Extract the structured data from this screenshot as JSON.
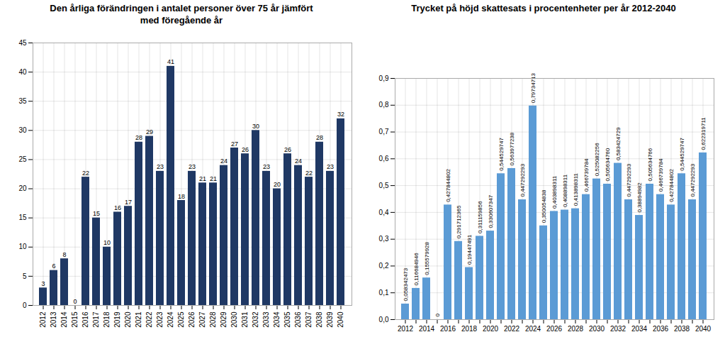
{
  "chart_data": [
    {
      "type": "bar",
      "title": "Den årliga förändringen i antalet personer över 75 år jämfört\nmed föregående år",
      "categories": [
        "2012",
        "2013",
        "2014",
        "2015",
        "2016",
        "2017",
        "2018",
        "2019",
        "2020",
        "2021",
        "2022",
        "2023",
        "2024",
        "2025",
        "2026",
        "2027",
        "2028",
        "2029",
        "2030",
        "2031",
        "2032",
        "2033",
        "2034",
        "2035",
        "2036",
        "2037",
        "2038",
        "2039",
        "2040"
      ],
      "values": [
        3,
        6,
        8,
        0,
        22,
        15,
        10,
        16,
        17,
        28,
        29,
        23,
        41,
        18,
        23,
        21,
        21,
        24,
        27,
        26,
        30,
        23,
        20,
        26,
        24,
        22,
        28,
        23,
        32
      ],
      "color": "#1F3864",
      "ylim": [
        0,
        45
      ],
      "yticks": [
        0,
        5,
        10,
        15,
        20,
        25,
        30,
        35,
        40,
        45
      ],
      "grid": true,
      "data_labels": true
    },
    {
      "type": "bar",
      "title": "Trycket på höjd skattesats i procentenheter per år 2012-2040",
      "categories": [
        "2012",
        null,
        "2014",
        null,
        "2016",
        null,
        "2018",
        null,
        "2020",
        null,
        "2022",
        null,
        "2024",
        null,
        "2026",
        null,
        "2028",
        null,
        "2030",
        null,
        "2032",
        null,
        "2034",
        null,
        "2036",
        null,
        "2038",
        null,
        "2040"
      ],
      "values": [
        0.058342473,
        0.116684946,
        0.155579928,
        0.0,
        0.427844802,
        0.291712365,
        0.19447491,
        0.311159856,
        0.330607347,
        0.544529747,
        0.563977238,
        0.447292293,
        0.79734713,
        0.350054838,
        0.403898311,
        0.408898311,
        0.413898311,
        0.466739784,
        0.525082256,
        0.50563476,
        0.583424729,
        0.447292293,
        0.38894982,
        0.505634766,
        0.466739784,
        0.427844802,
        0.544529747,
        0.447292293,
        0.622319711
      ],
      "value_labels": [
        "0,058342473",
        "0,116684946",
        "0,155579928",
        "0",
        "0,427844802",
        "0,291712365",
        "0,19447491",
        "0,311159856",
        "0,330607347",
        "0,544529747",
        "0,563977238",
        "0,447292293",
        "0,79734713",
        "0,350054838",
        "0,403898311",
        "0,408898311",
        "0,413898311",
        "0,466739784",
        "0,525082256",
        "0,505634760",
        "0,583424729",
        "0,447292293",
        "0,38894982",
        "0,505634766",
        "0,466739784",
        "0,427844802",
        "0,544529747",
        "0,447292293",
        "0,622319711"
      ],
      "color": "#5B9BD5",
      "ylim": [
        0,
        0.9
      ],
      "yticks": [
        {
          "value": 0.0,
          "label": "0,0"
        },
        {
          "value": 0.1,
          "label": "0,1"
        },
        {
          "value": 0.2,
          "label": "0,2"
        },
        {
          "value": 0.3,
          "label": "0,3"
        },
        {
          "value": 0.4,
          "label": "0,4"
        },
        {
          "value": 0.5,
          "label": "0,5"
        },
        {
          "value": 0.6,
          "label": "0,6"
        },
        {
          "value": 0.7,
          "label": "0,7"
        },
        {
          "value": 0.8,
          "label": "0,8"
        },
        {
          "value": 0.9,
          "label": "0,9"
        }
      ],
      "grid": true,
      "data_labels": true
    }
  ]
}
